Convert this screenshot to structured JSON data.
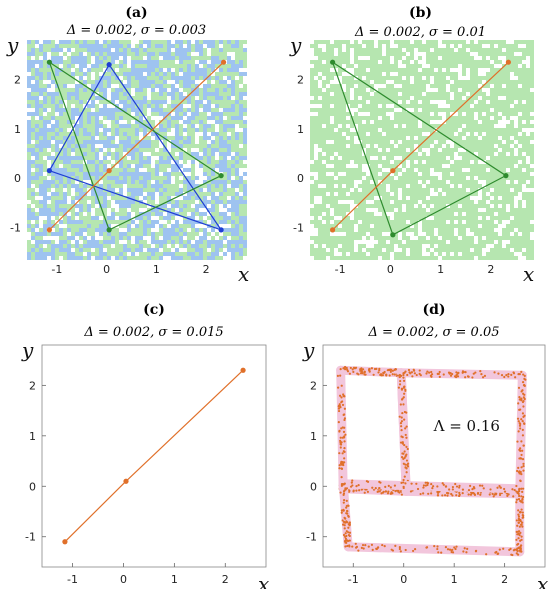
{
  "colors": {
    "blue": "#1f3fd4",
    "green": "#2e8b2e",
    "orange": "#e0702a",
    "light_green": "#b6e6b0",
    "light_blue": "#9ec3f0",
    "pink": "#f2c6dc",
    "frame": "#888888"
  },
  "chart_data": [
    {
      "type": "scatter",
      "panel": "(a)",
      "title": "Δ = 0.002,  σ = 0.003",
      "xlabel": "x",
      "ylabel": "y",
      "xlim": [
        -1.6,
        2.8
      ],
      "ylim": [
        -1.6,
        2.8
      ],
      "xticks": [
        -1,
        0,
        1,
        2
      ],
      "yticks": [
        -1,
        0,
        1,
        2
      ],
      "background": "mixed",
      "series": [
        {
          "color": "blue",
          "closed": true,
          "points": [
            [
              0.05,
              2.3
            ],
            [
              -1.15,
              0.15
            ],
            [
              2.3,
              -1.05
            ]
          ]
        },
        {
          "color": "green",
          "closed": true,
          "points": [
            [
              -1.15,
              2.35
            ],
            [
              2.3,
              0.05
            ],
            [
              0.05,
              -1.05
            ]
          ]
        },
        {
          "color": "orange",
          "closed": false,
          "points": [
            [
              -1.15,
              -1.05
            ],
            [
              0.05,
              0.15
            ],
            [
              2.35,
              2.35
            ]
          ]
        }
      ]
    },
    {
      "type": "scatter",
      "panel": "(b)",
      "title": "Δ = 0.002,  σ = 0.01",
      "xlabel": "x",
      "ylabel": "y",
      "xlim": [
        -1.6,
        2.8
      ],
      "ylim": [
        -1.6,
        2.8
      ],
      "xticks": [
        -1,
        0,
        1,
        2
      ],
      "yticks": [
        -1,
        0,
        1,
        2
      ],
      "background": "green",
      "series": [
        {
          "color": "green",
          "closed": true,
          "points": [
            [
              -1.15,
              2.35
            ],
            [
              2.3,
              0.05
            ],
            [
              0.05,
              -1.15
            ]
          ]
        },
        {
          "color": "orange",
          "closed": false,
          "points": [
            [
              -1.15,
              -1.05
            ],
            [
              0.05,
              0.15
            ],
            [
              2.35,
              2.35
            ]
          ]
        }
      ]
    },
    {
      "type": "line",
      "panel": "(c)",
      "title": "Δ = 0.002,  σ = 0.015",
      "xlabel": "x",
      "ylabel": "y",
      "xlim": [
        -1.6,
        2.8
      ],
      "ylim": [
        -1.6,
        2.8
      ],
      "xticks": [
        -1,
        0,
        1,
        2
      ],
      "yticks": [
        -1,
        0,
        1,
        2
      ],
      "background": "none",
      "series": [
        {
          "color": "orange",
          "closed": false,
          "points": [
            [
              -1.15,
              -1.1
            ],
            [
              0.05,
              0.1
            ],
            [
              2.35,
              2.3
            ]
          ]
        }
      ]
    },
    {
      "type": "scatter",
      "panel": "(d)",
      "title": "Δ = 0.002,  σ = 0.05",
      "xlabel": "x",
      "ylabel": "y",
      "xlim": [
        -1.6,
        2.8
      ],
      "ylim": [
        -1.6,
        2.8
      ],
      "xticks": [
        -1,
        0,
        1,
        2
      ],
      "yticks": [
        -1,
        0,
        1,
        2
      ],
      "background": "none",
      "annotation": "Λ = 0.16",
      "rects": [
        {
          "points": [
            [
              -1.25,
              2.3
            ],
            [
              -0.05,
              2.25
            ],
            [
              0.05,
              -0.1
            ],
            [
              -1.2,
              -0.05
            ]
          ]
        },
        {
          "points": [
            [
              -0.05,
              2.25
            ],
            [
              2.35,
              2.2
            ],
            [
              2.3,
              -0.15
            ],
            [
              0.05,
              -0.1
            ]
          ]
        },
        {
          "points": [
            [
              -1.2,
              0.05
            ],
            [
              2.3,
              -0.05
            ],
            [
              2.3,
              -1.3
            ],
            [
              -1.1,
              -1.2
            ]
          ]
        }
      ]
    }
  ]
}
